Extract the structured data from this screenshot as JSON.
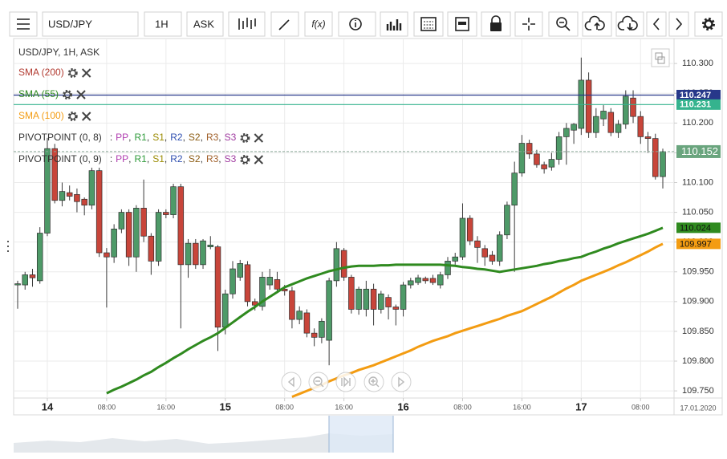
{
  "toolbar": {
    "symbol": "USD/JPY",
    "timeframe": "1H",
    "side": "ASK",
    "function_icon": "f(x)"
  },
  "chart_data": {
    "type": "candlestick",
    "title": "USD/JPY, 1H, ASK",
    "up_color": "#4e9a68",
    "down_color": "#c8453a",
    "open": [
      109.928,
      109.928,
      109.945,
      109.935,
      110.015,
      110.157,
      110.07,
      110.083,
      110.08,
      110.072,
      110.062,
      110.12,
      109.982,
      109.975,
      110.022,
      110.05,
      109.975,
      110.057,
      110.01,
      109.968,
      110.05,
      110.046,
      110.093,
      109.962,
      109.998,
      109.962,
      109.992,
      109.992,
      109.857,
      109.913,
      109.941,
      109.962,
      109.9,
      109.892,
      109.928,
      109.937,
      109.921,
      109.918,
      109.87,
      109.881,
      109.847,
      109.84,
      109.835,
      109.935,
      109.986,
      109.941,
      109.887,
      109.887,
      109.921,
      109.887,
      109.907,
      109.891,
      109.887,
      109.928,
      109.932,
      109.939,
      109.939,
      109.928,
      109.945,
      109.968,
      109.975,
      110.04,
      110.002,
      109.989,
      109.978,
      109.968,
      110.012,
      110.062,
      110.116,
      110.166,
      110.148,
      110.13,
      110.126,
      110.139,
      110.177,
      110.188,
      110.191,
      110.272,
      110.184,
      110.207,
      110.218,
      110.184,
      110.198,
      110.242,
      110.211,
      110.177,
      110.174,
      110.11
    ],
    "high": [
      109.935,
      109.95,
      109.955,
      110.025,
      110.175,
      110.165,
      110.1,
      110.095,
      110.09,
      110.075,
      110.125,
      110.125,
      109.99,
      110.03,
      110.055,
      110.055,
      110.062,
      110.105,
      110.015,
      110.055,
      110.055,
      110.098,
      110.098,
      110.005,
      110.005,
      110.005,
      110.01,
      109.995,
      109.92,
      109.968,
      109.97,
      109.968,
      109.905,
      109.95,
      109.955,
      109.95,
      109.928,
      109.925,
      109.892,
      109.887,
      109.855,
      109.872,
      109.94,
      110.0,
      109.99,
      109.945,
      109.925,
      109.935,
      109.93,
      109.918,
      109.912,
      109.895,
      109.933,
      109.94,
      109.945,
      109.942,
      109.945,
      109.95,
      109.975,
      109.982,
      110.065,
      110.045,
      110.01,
      109.995,
      109.985,
      110.018,
      110.068,
      110.135,
      110.18,
      110.172,
      110.155,
      110.135,
      110.15,
      110.185,
      110.2,
      110.2,
      110.31,
      110.285,
      110.225,
      110.23,
      110.225,
      110.205,
      110.255,
      110.255,
      110.22,
      110.185,
      110.182,
      110.157
    ],
    "low": [
      109.888,
      109.92,
      109.925,
      109.93,
      110.01,
      110.065,
      110.06,
      110.07,
      110.05,
      110.045,
      110.055,
      109.975,
      109.89,
      109.965,
      110.015,
      109.96,
      109.95,
      110.0,
      109.945,
      109.96,
      110.04,
      110.04,
      109.855,
      109.94,
      109.955,
      109.955,
      109.988,
      109.817,
      109.845,
      109.905,
      109.935,
      109.892,
      109.885,
      109.885,
      109.92,
      109.915,
      109.91,
      109.855,
      109.862,
      109.84,
      109.825,
      109.83,
      109.793,
      109.925,
      109.935,
      109.88,
      109.878,
      109.875,
      109.86,
      109.88,
      109.87,
      109.86,
      109.875,
      109.922,
      109.928,
      109.93,
      109.928,
      109.922,
      109.938,
      109.962,
      109.97,
      109.995,
      109.965,
      109.96,
      109.962,
      109.96,
      110.005,
      109.95,
      110.11,
      110.14,
      110.125,
      110.115,
      110.12,
      110.13,
      110.13,
      110.165,
      110.18,
      110.175,
      110.175,
      110.195,
      110.178,
      110.175,
      110.19,
      110.2,
      110.165,
      110.15,
      110.105,
      110.09
    ],
    "close": [
      109.93,
      109.945,
      109.94,
      110.015,
      110.157,
      110.07,
      110.085,
      110.077,
      110.068,
      110.062,
      110.12,
      109.982,
      109.975,
      110.022,
      110.05,
      109.975,
      110.057,
      110.01,
      109.968,
      110.05,
      110.046,
      110.093,
      109.962,
      109.998,
      109.962,
      110.002,
      109.995,
      109.857,
      109.913,
      109.955,
      109.964,
      109.9,
      109.894,
      109.941,
      109.941,
      109.921,
      109.918,
      109.87,
      109.884,
      109.847,
      109.84,
      109.867,
      109.935,
      109.989,
      109.941,
      109.887,
      109.921,
      109.921,
      109.887,
      109.913,
      109.891,
      109.887,
      109.928,
      109.935,
      109.94,
      109.935,
      109.932,
      109.945,
      109.968,
      109.975,
      110.04,
      110.002,
      109.991,
      109.975,
      109.968,
      110.012,
      110.062,
      110.116,
      110.166,
      110.148,
      110.13,
      110.123,
      110.139,
      110.177,
      110.191,
      110.198,
      110.272,
      110.184,
      110.211,
      110.22,
      110.184,
      110.198,
      110.245,
      110.211,
      110.177,
      110.174,
      110.11,
      110.152
    ],
    "last_price_color": "#6aa57e",
    "indicators": [
      {
        "name": "SMA (200)",
        "color": "#b23a30"
      }
    ],
    "series": [
      {
        "name": "SMA (55)",
        "color": "#2f8a1f",
        "values": [
          null,
          null,
          null,
          null,
          null,
          null,
          null,
          null,
          null,
          null,
          null,
          null,
          109.746,
          109.752,
          109.757,
          109.763,
          109.769,
          109.776,
          109.782,
          109.79,
          109.797,
          109.805,
          109.812,
          109.82,
          109.827,
          109.834,
          109.84,
          109.847,
          109.856,
          109.865,
          109.874,
          109.883,
          109.891,
          109.9,
          109.908,
          109.916,
          109.924,
          109.929,
          109.934,
          109.939,
          109.943,
          109.947,
          109.951,
          109.954,
          109.957,
          109.959,
          109.96,
          109.96,
          109.96,
          109.961,
          109.961,
          109.962,
          109.962,
          109.962,
          109.962,
          109.962,
          109.962,
          109.962,
          109.961,
          109.96,
          109.958,
          109.957,
          109.955,
          109.954,
          109.952,
          109.95,
          109.952,
          109.954,
          109.956,
          109.958,
          109.96,
          109.963,
          109.965,
          109.968,
          109.97,
          109.973,
          109.975,
          109.98,
          109.984,
          109.989,
          109.993,
          109.998,
          110.002,
          110.006,
          110.01,
          110.014,
          110.019,
          110.024
        ]
      },
      {
        "name": "SMA (100)",
        "color": "#f39c12",
        "values": [
          null,
          null,
          null,
          null,
          null,
          null,
          null,
          null,
          null,
          null,
          null,
          null,
          null,
          null,
          null,
          null,
          null,
          null,
          null,
          null,
          null,
          null,
          null,
          null,
          null,
          null,
          null,
          null,
          null,
          null,
          null,
          null,
          null,
          null,
          null,
          null,
          null,
          109.74,
          109.745,
          109.75,
          109.755,
          109.76,
          109.766,
          109.771,
          109.776,
          109.78,
          109.785,
          109.789,
          109.793,
          109.798,
          109.803,
          109.808,
          109.813,
          109.818,
          109.824,
          109.829,
          109.834,
          109.838,
          109.842,
          109.847,
          109.851,
          109.855,
          109.859,
          109.863,
          109.867,
          109.871,
          109.876,
          109.88,
          109.884,
          109.89,
          109.896,
          109.902,
          109.908,
          109.915,
          109.922,
          109.928,
          109.935,
          109.94,
          109.945,
          109.95,
          109.955,
          109.961,
          109.966,
          109.972,
          109.978,
          109.984,
          109.991,
          109.997
        ]
      }
    ],
    "pivots": [
      {
        "name": "PIVOTPOINT (0, 8)"
      },
      {
        "name": "PIVOTPOINT (0, 9)"
      }
    ],
    "pivot_lead": ":",
    "pivot_delimiter": ",",
    "pivot_components": [
      {
        "label": "PP",
        "color": "#b03cb0"
      },
      {
        "label": "R1",
        "color": "#2e9a3a"
      },
      {
        "label": "S1",
        "color": "#9a8a00"
      },
      {
        "label": "R2",
        "color": "#2f4fb0"
      },
      {
        "label": "S2",
        "color": "#8a5a10"
      },
      {
        "label": "R3",
        "color": "#a0602a"
      },
      {
        "label": "S3",
        "color": "#a03aa0"
      }
    ],
    "levels": [
      {
        "value": 110.247,
        "color": "#27388a"
      },
      {
        "value": 110.231,
        "color": "#35b38e"
      }
    ],
    "ylim": [
      109.738,
      110.342
    ],
    "yticks": [
      {
        "value": 110.3,
        "label": "110.300"
      },
      {
        "value": 110.25,
        "label": "110.250"
      },
      {
        "value": 110.2,
        "label": "110.200"
      },
      {
        "value": 110.15,
        "label": "110.150"
      },
      {
        "value": 110.1,
        "label": "110.100"
      },
      {
        "value": 110.05,
        "label": "110.050"
      },
      {
        "value": 110,
        "label": "110.000"
      },
      {
        "value": 109.95,
        "label": "109.950"
      },
      {
        "value": 109.9,
        "label": "109.900"
      },
      {
        "value": 109.85,
        "label": "109.850"
      },
      {
        "value": 109.8,
        "label": "109.800"
      },
      {
        "value": 109.75,
        "label": "109.750"
      }
    ],
    "xticks": [
      {
        "value": 4,
        "label": "14"
      },
      {
        "value": 12,
        "label": "08:00"
      },
      {
        "value": 20,
        "label": "16:00"
      },
      {
        "value": 28,
        "label": "15"
      },
      {
        "value": 36,
        "label": "08:00"
      },
      {
        "value": 44,
        "label": "16:00"
      },
      {
        "value": 52,
        "label": "16"
      },
      {
        "value": 60,
        "label": "08:00"
      },
      {
        "value": 68,
        "label": "16:00"
      },
      {
        "value": 76,
        "label": "17"
      },
      {
        "value": 84,
        "label": "08:00"
      }
    ],
    "date_label": "17.01.2020",
    "grid": true
  }
}
